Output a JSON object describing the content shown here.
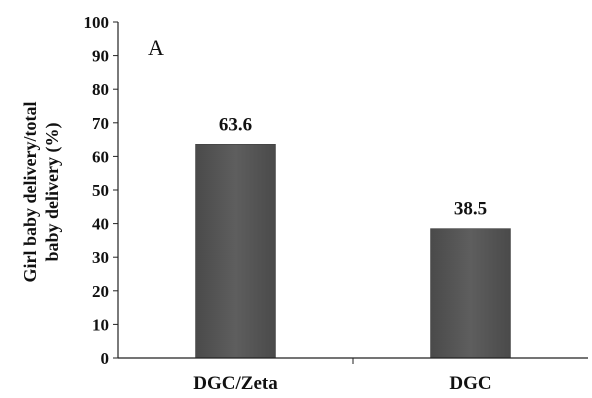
{
  "chart_data": {
    "type": "bar",
    "panel_label": "A",
    "ylabel_line1": "Girl baby delivery/total",
    "ylabel_line2": "baby delivery (%)",
    "xlabel": "",
    "ylim": [
      0,
      100
    ],
    "ytick_step": 10,
    "grid": false,
    "categories": [
      "DGC/Zeta",
      "DGC"
    ],
    "values": [
      63.6,
      38.5
    ],
    "data_labels": [
      "63.6",
      "38.5"
    ],
    "bar_color": "#555555"
  }
}
